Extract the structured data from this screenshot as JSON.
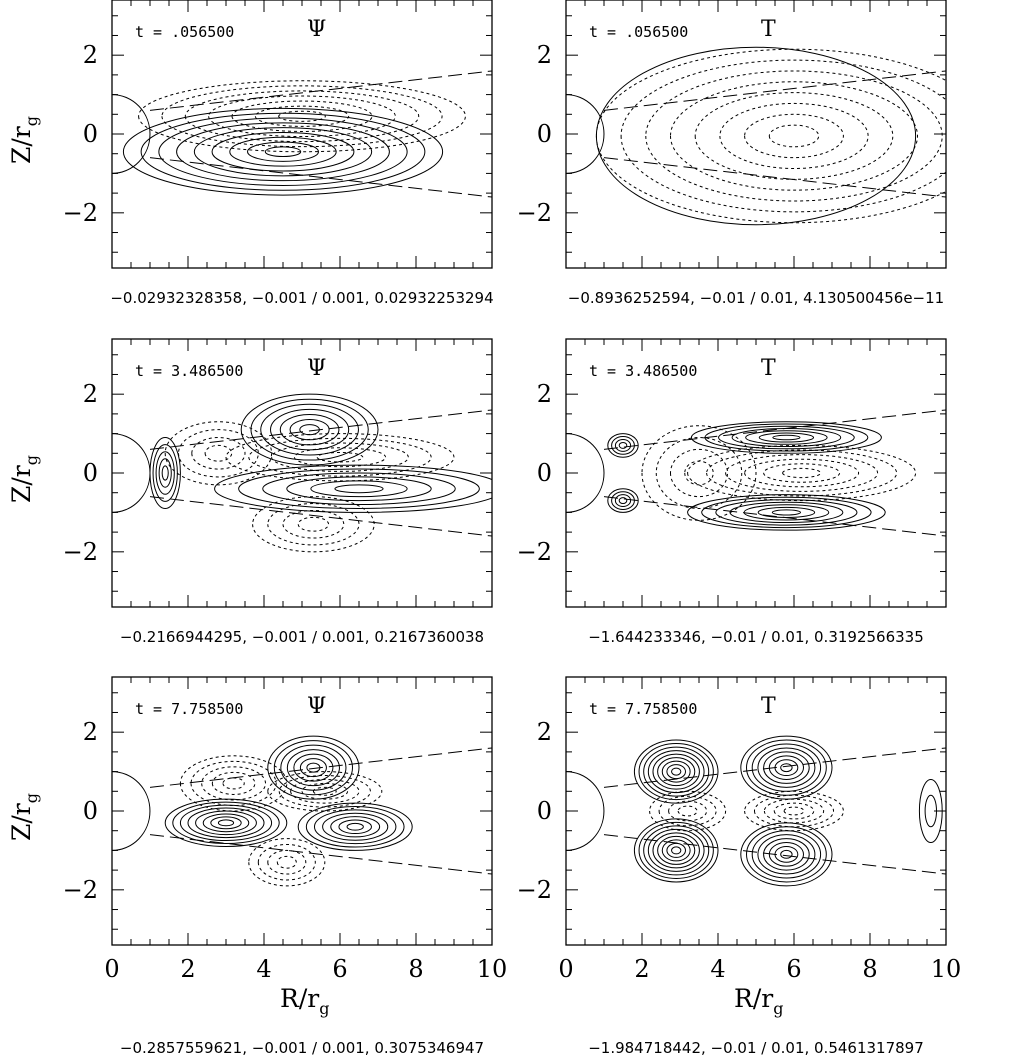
{
  "chart_data": {
    "type": "contour",
    "xlabel": "R/r",
    "xlabel_sub": "g",
    "ylabel": "Z/r",
    "ylabel_sub": "g",
    "xlim": [
      0,
      10
    ],
    "ylim": [
      -3.4,
      3.4
    ],
    "x_ticks": [
      "0",
      "2",
      "4",
      "6",
      "8",
      "10"
    ],
    "y_ticks": [
      "2",
      "0",
      "−2"
    ],
    "panels": [
      {
        "row": 0,
        "col": 0,
        "time": "t = .056500",
        "field": "Ψ",
        "range": "−0.02932328358, −0.001 / 0.001, 0.02932253294"
      },
      {
        "row": 0,
        "col": 1,
        "time": "t = .056500",
        "field": "T",
        "range": "−0.8936252594, −0.01 / 0.01, 4.130500456e−11"
      },
      {
        "row": 1,
        "col": 0,
        "time": "t = 3.486500",
        "field": "Ψ",
        "range": "−0.2166944295, −0.001 / 0.001, 0.2167360038"
      },
      {
        "row": 1,
        "col": 1,
        "time": "t = 3.486500",
        "field": "T",
        "range": "−1.644233346, −0.01 / 0.01, 0.3192566335"
      },
      {
        "row": 2,
        "col": 0,
        "time": "t = 7.758500",
        "field": "Ψ",
        "range": "−0.2857559621, −0.001 / 0.001, 0.3075346947"
      },
      {
        "row": 2,
        "col": 1,
        "time": "t = 7.758500",
        "field": "T",
        "range": "−1.984718442, −0.01 / 0.01, 0.5461317897"
      }
    ]
  }
}
